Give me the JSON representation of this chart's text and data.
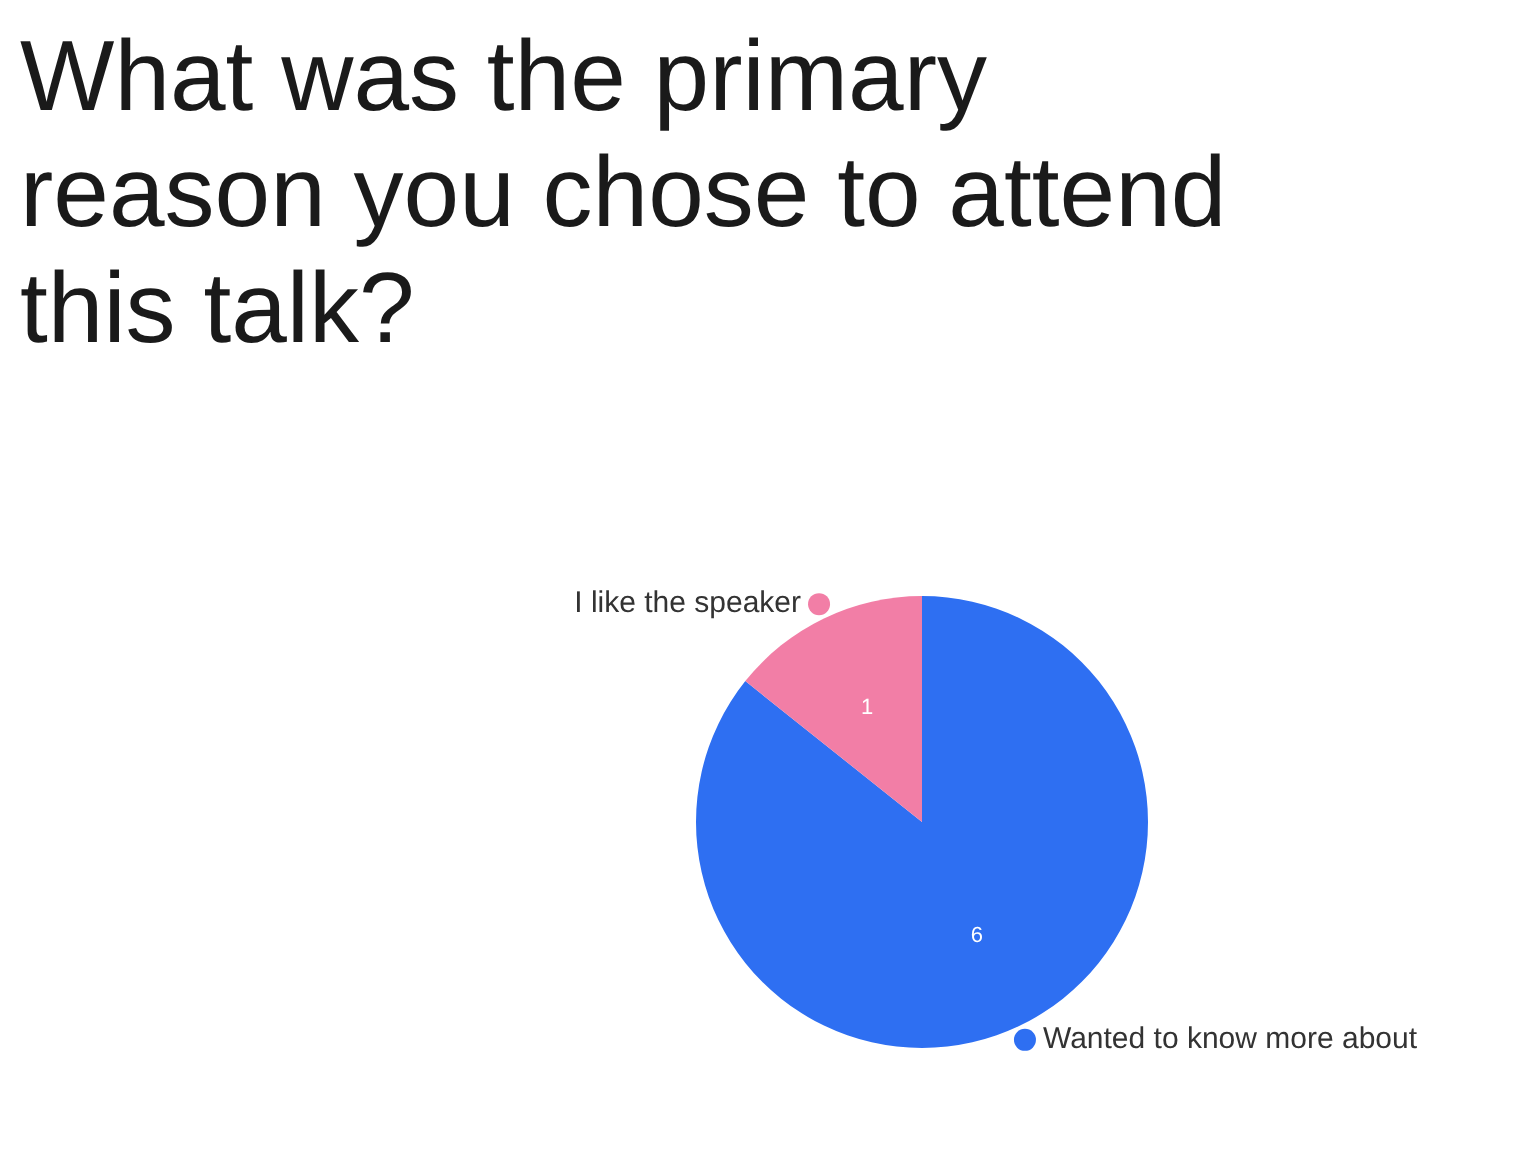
{
  "chart_data": {
    "type": "pie",
    "title": "What was the primary reason you chose to attend this talk?",
    "categories": [
      "Wanted to know more about",
      "I like the speaker"
    ],
    "values": [
      6,
      1
    ],
    "colors": [
      "#2e6ff2",
      "#f27ea6"
    ],
    "data_labels": true
  }
}
